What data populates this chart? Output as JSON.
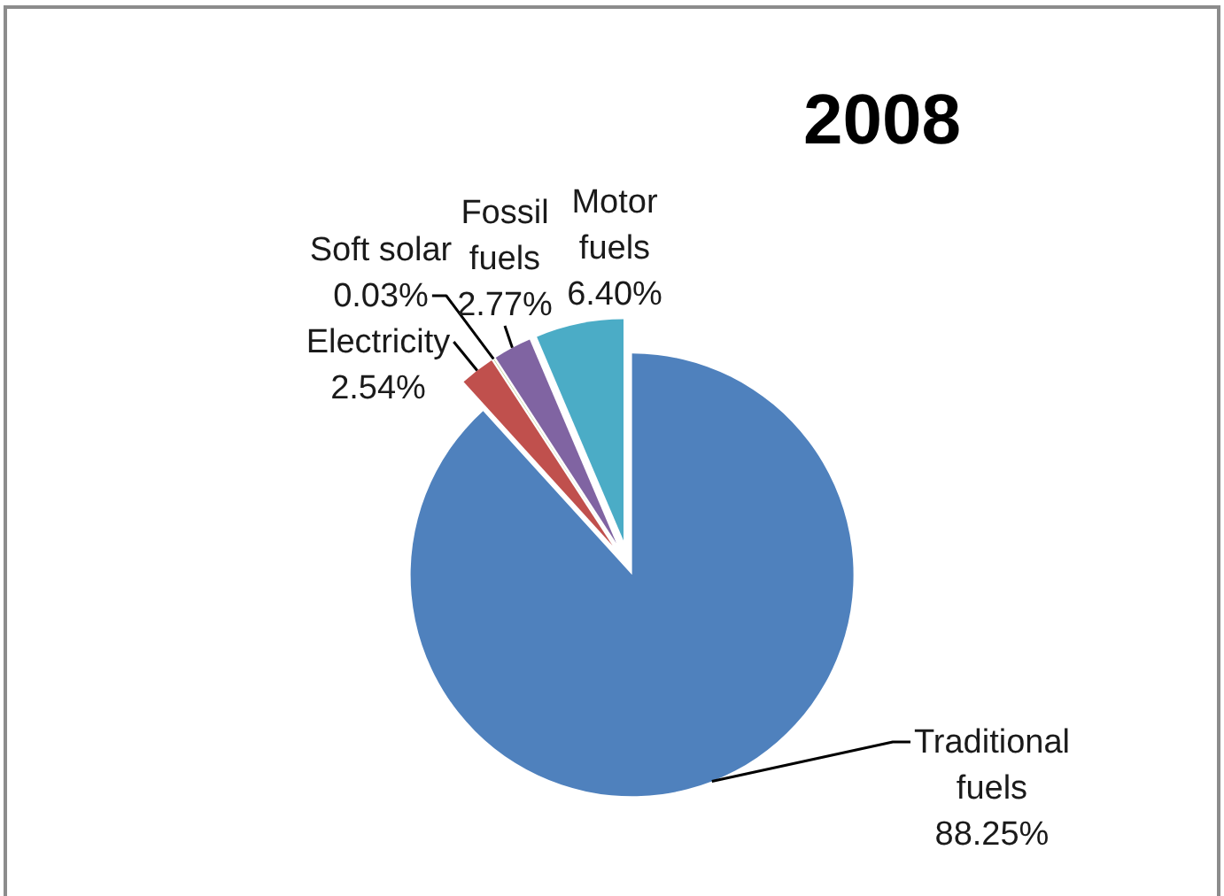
{
  "chart_data": {
    "type": "pie",
    "title": "2008",
    "categories": [
      "Traditional fuels",
      "Electricity",
      "Soft solar",
      "Fossil fuels",
      "Motor fuels"
    ],
    "values": [
      88.25,
      2.54,
      0.03,
      2.77,
      6.4
    ],
    "value_labels": [
      "88.25%",
      "2.54%",
      "0.03%",
      "2.77%",
      "6.40%"
    ],
    "colors": [
      "#4f81bd",
      "#c0504d",
      "#9bbb59",
      "#8064a2",
      "#4bacc6"
    ]
  }
}
